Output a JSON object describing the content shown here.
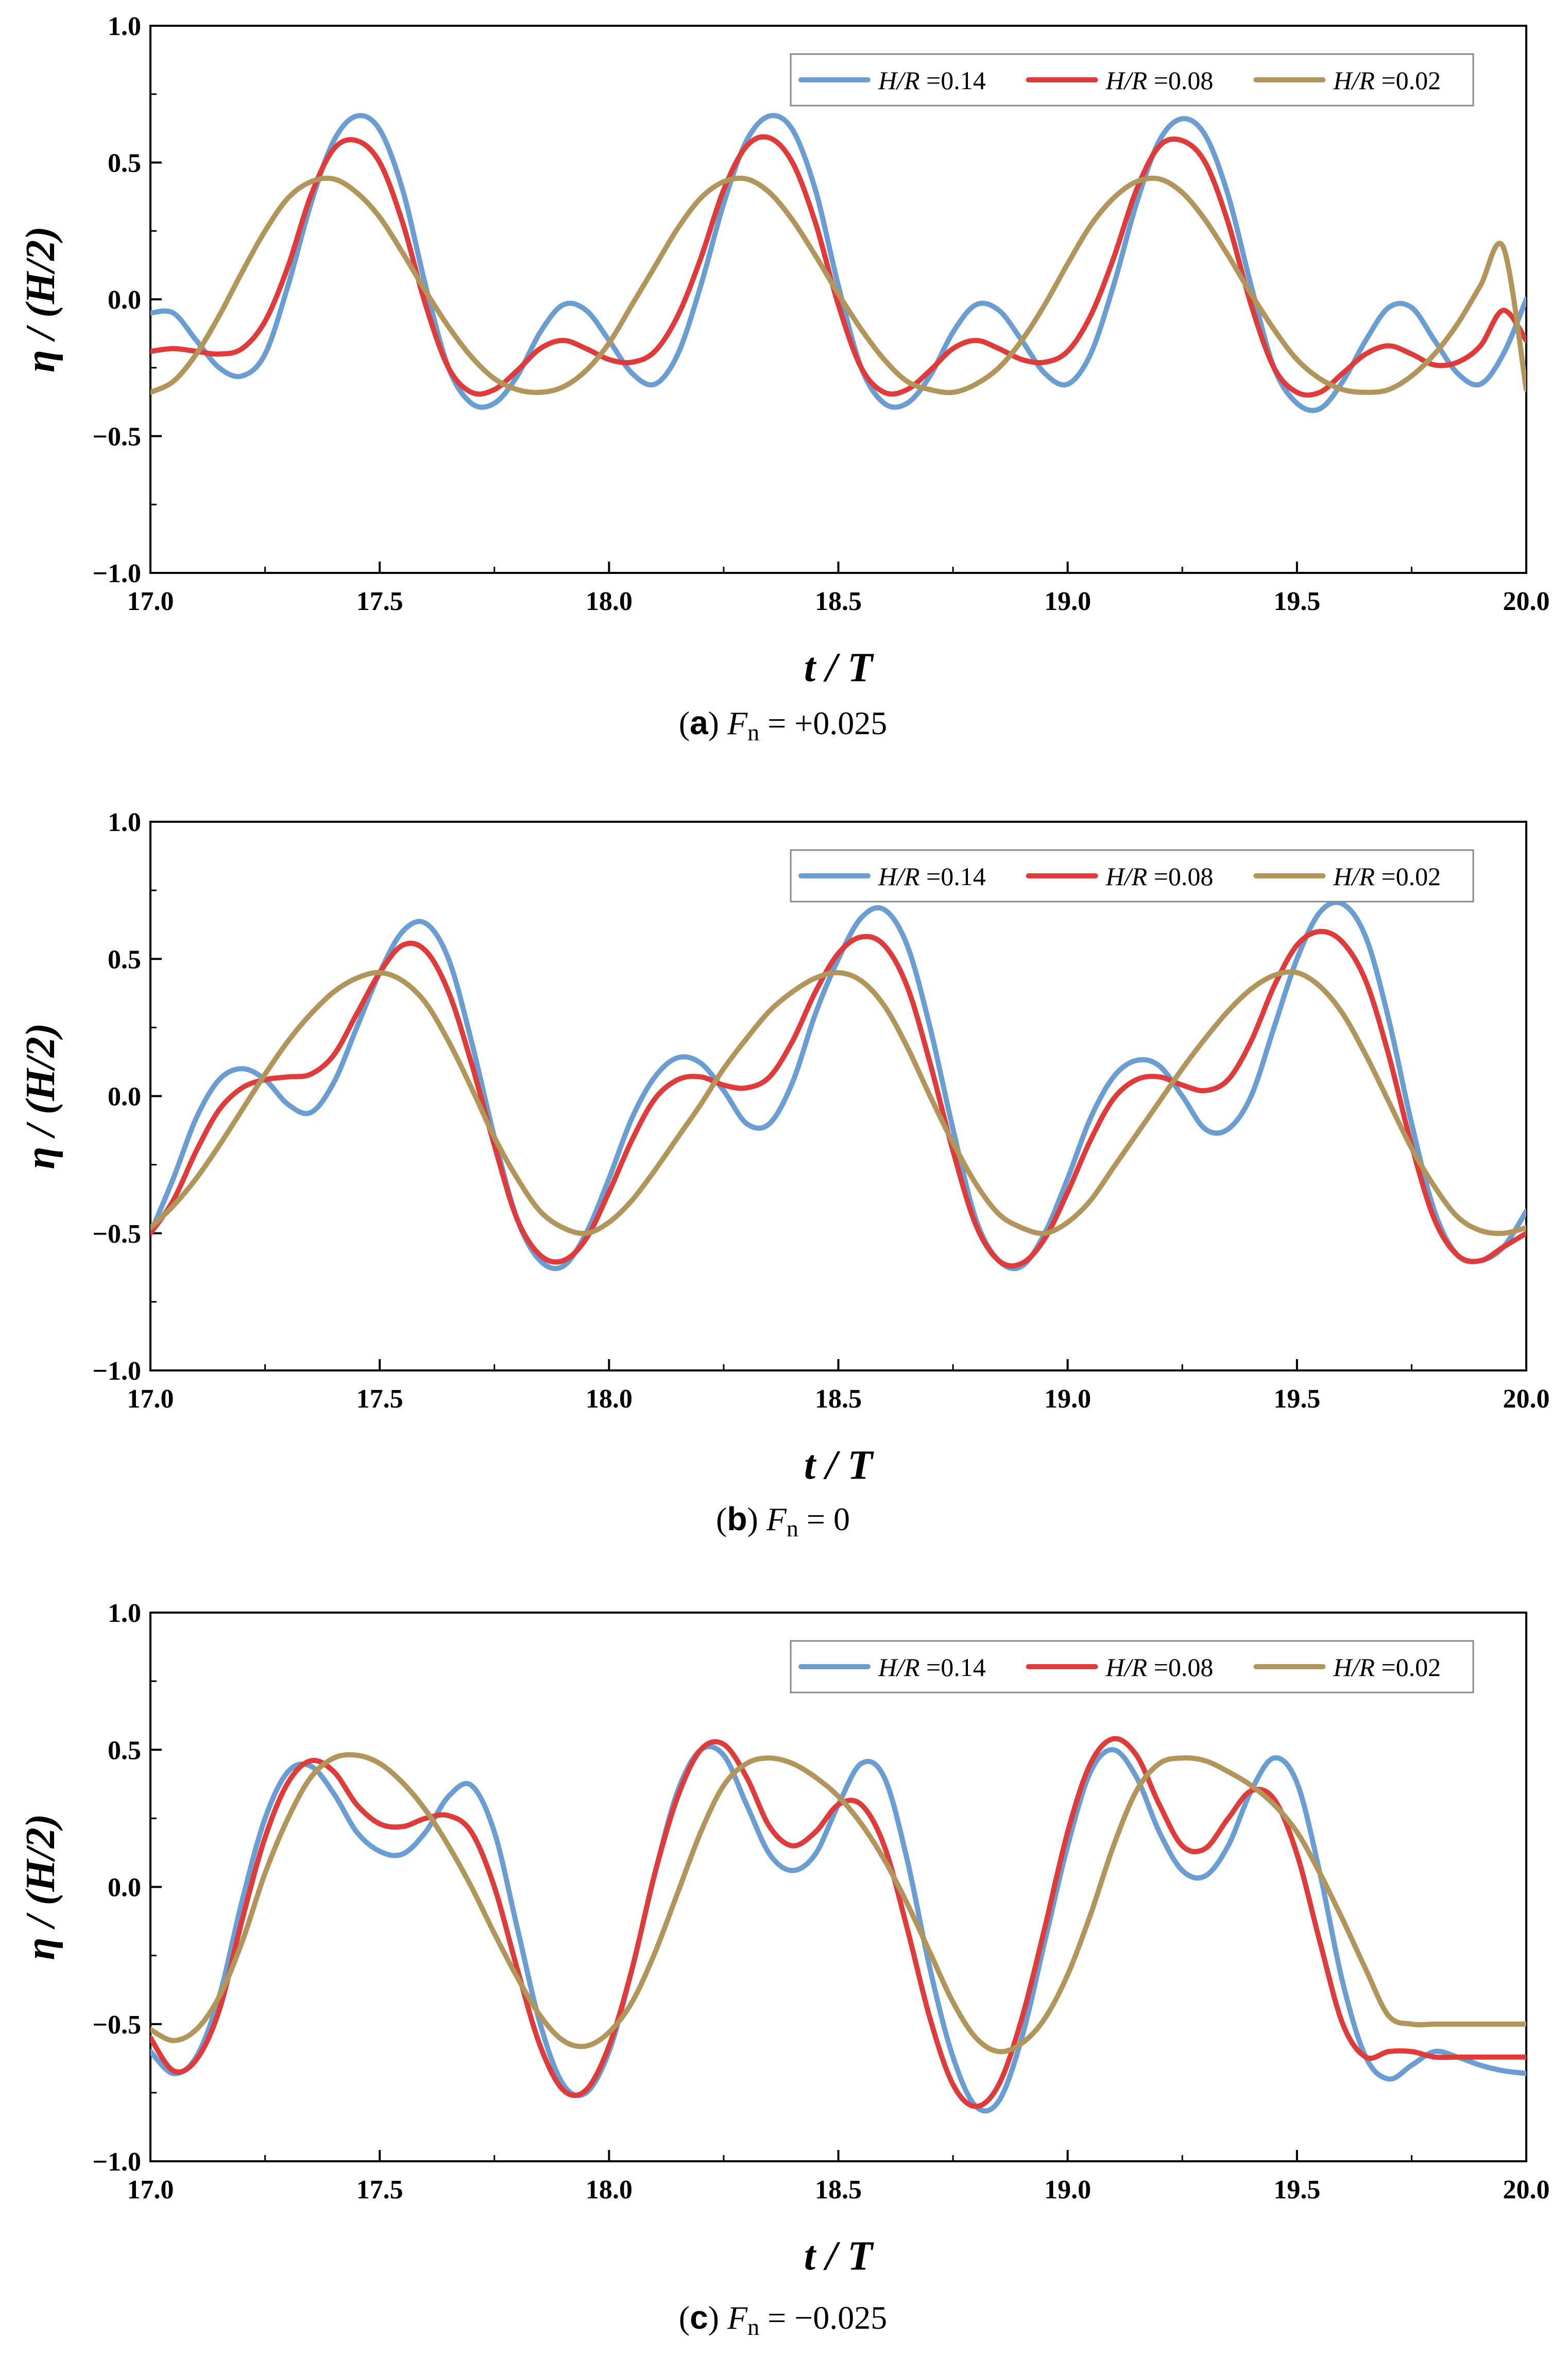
{
  "chart_data": [
    {
      "type": "line",
      "caption": {
        "letter": "a",
        "lhs": "F",
        "sub": "n",
        "rhs": " = +0.025"
      },
      "xlabel": "t / T",
      "ylabel": "η / (H/2)",
      "xlim": [
        17.0,
        20.0
      ],
      "ylim": [
        -1.0,
        1.0
      ],
      "xticks": [
        "17.0",
        "17.5",
        "18.0",
        "18.5",
        "19.0",
        "19.5",
        "20.0"
      ],
      "yticks": [
        "−1.0",
        "−0.5",
        "0.0",
        "0.5",
        "1.0"
      ],
      "legend_position": "top-right",
      "x": [
        17.0,
        17.05,
        17.1,
        17.15,
        17.2,
        17.25,
        17.3,
        17.35,
        17.4,
        17.45,
        17.5,
        17.55,
        17.6,
        17.65,
        17.7,
        17.75,
        17.8,
        17.85,
        17.9,
        17.95,
        18.0,
        18.05,
        18.1,
        18.15,
        18.2,
        18.25,
        18.3,
        18.35,
        18.4,
        18.45,
        18.5,
        18.55,
        18.6,
        18.65,
        18.7,
        18.75,
        18.8,
        18.85,
        18.9,
        18.95,
        19.0,
        19.05,
        19.1,
        19.15,
        19.2,
        19.25,
        19.3,
        19.35,
        19.4,
        19.45,
        19.5,
        19.55,
        19.6,
        19.65,
        19.7,
        19.75,
        19.8,
        19.85,
        19.9,
        19.95,
        20.0
      ],
      "series": [
        {
          "name_main": "H/R",
          "name_value": " =0.14",
          "color": "#6a9dd1",
          "values": [
            -0.05,
            -0.05,
            -0.15,
            -0.25,
            -0.28,
            -0.2,
            0.05,
            0.35,
            0.58,
            0.67,
            0.62,
            0.4,
            0.05,
            -0.25,
            -0.38,
            -0.38,
            -0.28,
            -0.12,
            -0.02,
            -0.04,
            -0.15,
            -0.27,
            -0.31,
            -0.2,
            0.05,
            0.35,
            0.58,
            0.67,
            0.62,
            0.4,
            0.05,
            -0.25,
            -0.38,
            -0.38,
            -0.28,
            -0.12,
            -0.02,
            -0.04,
            -0.15,
            -0.27,
            -0.31,
            -0.2,
            0.05,
            0.35,
            0.58,
            0.66,
            0.6,
            0.38,
            0.05,
            -0.25,
            -0.38,
            -0.4,
            -0.3,
            -0.15,
            -0.03,
            -0.03,
            -0.15,
            -0.27,
            -0.31,
            -0.2,
            0.0
          ]
        },
        {
          "name_main": "H/R",
          "name_value": " =0.08",
          "color": "#de3b3a",
          "values": [
            -0.19,
            -0.18,
            -0.19,
            -0.2,
            -0.18,
            -0.08,
            0.12,
            0.38,
            0.55,
            0.58,
            0.5,
            0.28,
            -0.02,
            -0.25,
            -0.34,
            -0.33,
            -0.26,
            -0.18,
            -0.15,
            -0.18,
            -0.22,
            -0.23,
            -0.19,
            -0.06,
            0.15,
            0.4,
            0.56,
            0.59,
            0.5,
            0.28,
            -0.02,
            -0.25,
            -0.34,
            -0.33,
            -0.26,
            -0.18,
            -0.15,
            -0.18,
            -0.22,
            -0.23,
            -0.19,
            -0.06,
            0.15,
            0.4,
            0.56,
            0.58,
            0.5,
            0.28,
            -0.02,
            -0.25,
            -0.34,
            -0.34,
            -0.27,
            -0.2,
            -0.17,
            -0.2,
            -0.24,
            -0.23,
            -0.17,
            -0.04,
            -0.15
          ]
        },
        {
          "name_main": "H/R",
          "name_value": " =0.02",
          "color": "#b1955a",
          "values": [
            -0.34,
            -0.3,
            -0.2,
            -0.06,
            0.1,
            0.25,
            0.37,
            0.43,
            0.44,
            0.39,
            0.3,
            0.17,
            0.03,
            -0.1,
            -0.21,
            -0.29,
            -0.33,
            -0.34,
            -0.32,
            -0.26,
            -0.16,
            -0.02,
            0.12,
            0.26,
            0.37,
            0.43,
            0.44,
            0.39,
            0.29,
            0.16,
            0.02,
            -0.11,
            -0.22,
            -0.3,
            -0.33,
            -0.34,
            -0.31,
            -0.25,
            -0.15,
            -0.02,
            0.13,
            0.27,
            0.37,
            0.43,
            0.44,
            0.39,
            0.29,
            0.16,
            0.02,
            -0.11,
            -0.22,
            -0.29,
            -0.33,
            -0.34,
            -0.33,
            -0.28,
            -0.2,
            -0.09,
            0.05,
            0.19,
            -0.33
          ]
        }
      ]
    },
    {
      "type": "line",
      "caption": {
        "letter": "b",
        "lhs": "F",
        "sub": "n",
        "rhs": " = 0"
      },
      "xlabel": "t / T",
      "ylabel": "η / (H/2)",
      "xlim": [
        17.0,
        20.0
      ],
      "ylim": [
        -1.0,
        1.0
      ],
      "xticks": [
        "17.0",
        "17.5",
        "18.0",
        "18.5",
        "19.0",
        "19.5",
        "20.0"
      ],
      "yticks": [
        "−1.0",
        "−0.5",
        "0.0",
        "0.5",
        "1.0"
      ],
      "legend_position": "top-right",
      "x": [
        17.0,
        17.05,
        17.1,
        17.15,
        17.2,
        17.25,
        17.3,
        17.35,
        17.4,
        17.45,
        17.5,
        17.55,
        17.6,
        17.65,
        17.7,
        17.75,
        17.8,
        17.85,
        17.9,
        17.95,
        18.0,
        18.05,
        18.1,
        18.15,
        18.2,
        18.25,
        18.3,
        18.35,
        18.4,
        18.45,
        18.5,
        18.55,
        18.6,
        18.65,
        18.7,
        18.75,
        18.8,
        18.85,
        18.9,
        18.95,
        19.0,
        19.05,
        19.1,
        19.15,
        19.2,
        19.25,
        19.3,
        19.35,
        19.4,
        19.45,
        19.5,
        19.55,
        19.6,
        19.65,
        19.7,
        19.75,
        19.8,
        19.85,
        19.9,
        19.95,
        20.0
      ],
      "series": [
        {
          "name_main": "H/R",
          "name_value": " =0.14",
          "color": "#6a9dd1",
          "values": [
            -0.5,
            -0.3,
            -0.08,
            0.06,
            0.1,
            0.06,
            -0.03,
            -0.06,
            0.05,
            0.25,
            0.45,
            0.6,
            0.63,
            0.5,
            0.2,
            -0.15,
            -0.45,
            -0.6,
            -0.62,
            -0.5,
            -0.3,
            -0.08,
            0.07,
            0.14,
            0.12,
            0.02,
            -0.1,
            -0.1,
            0.05,
            0.3,
            0.5,
            0.65,
            0.68,
            0.55,
            0.25,
            -0.12,
            -0.45,
            -0.6,
            -0.62,
            -0.5,
            -0.3,
            -0.08,
            0.07,
            0.13,
            0.11,
            0.0,
            -0.12,
            -0.12,
            0.0,
            0.25,
            0.5,
            0.67,
            0.7,
            0.58,
            0.28,
            -0.1,
            -0.42,
            -0.58,
            -0.6,
            -0.55,
            -0.42
          ]
        },
        {
          "name_main": "H/R",
          "name_value": " =0.08",
          "color": "#de3b3a",
          "values": [
            -0.5,
            -0.38,
            -0.2,
            -0.05,
            0.03,
            0.06,
            0.07,
            0.08,
            0.15,
            0.3,
            0.45,
            0.55,
            0.53,
            0.38,
            0.12,
            -0.18,
            -0.45,
            -0.58,
            -0.6,
            -0.52,
            -0.35,
            -0.16,
            -0.01,
            0.06,
            0.07,
            0.04,
            0.03,
            0.07,
            0.2,
            0.38,
            0.52,
            0.58,
            0.55,
            0.4,
            0.12,
            -0.2,
            -0.47,
            -0.6,
            -0.61,
            -0.52,
            -0.35,
            -0.16,
            -0.01,
            0.06,
            0.07,
            0.04,
            0.02,
            0.06,
            0.2,
            0.4,
            0.55,
            0.6,
            0.56,
            0.42,
            0.15,
            -0.18,
            -0.45,
            -0.58,
            -0.6,
            -0.55,
            -0.5
          ]
        },
        {
          "name_main": "H/R",
          "name_value": " =0.02",
          "color": "#b1955a",
          "values": [
            -0.48,
            -0.4,
            -0.3,
            -0.18,
            -0.05,
            0.08,
            0.2,
            0.3,
            0.38,
            0.43,
            0.45,
            0.42,
            0.34,
            0.2,
            0.03,
            -0.15,
            -0.3,
            -0.42,
            -0.48,
            -0.5,
            -0.46,
            -0.38,
            -0.27,
            -0.15,
            -0.03,
            0.1,
            0.21,
            0.31,
            0.38,
            0.43,
            0.45,
            0.42,
            0.33,
            0.18,
            0.0,
            -0.17,
            -0.32,
            -0.43,
            -0.48,
            -0.5,
            -0.46,
            -0.38,
            -0.26,
            -0.14,
            -0.02,
            0.1,
            0.21,
            0.31,
            0.39,
            0.44,
            0.45,
            0.4,
            0.3,
            0.15,
            -0.02,
            -0.19,
            -0.33,
            -0.44,
            -0.49,
            -0.5,
            -0.48
          ]
        }
      ]
    },
    {
      "type": "line",
      "caption": {
        "letter": "c",
        "lhs": "F",
        "sub": "n",
        "rhs": " = −0.025"
      },
      "xlabel": "t / T",
      "ylabel": "η / (H/2)",
      "xlim": [
        17.0,
        20.0
      ],
      "ylim": [
        -1.0,
        1.0
      ],
      "xticks": [
        "17.0",
        "17.5",
        "18.0",
        "18.5",
        "19.0",
        "19.5",
        "20.0"
      ],
      "yticks": [
        "−1.0",
        "−0.5",
        "0.0",
        "0.5",
        "1.0"
      ],
      "legend_position": "top-right",
      "x": [
        17.0,
        17.05,
        17.1,
        17.15,
        17.2,
        17.25,
        17.3,
        17.35,
        17.4,
        17.45,
        17.5,
        17.55,
        17.6,
        17.65,
        17.7,
        17.75,
        17.8,
        17.85,
        17.9,
        17.95,
        18.0,
        18.05,
        18.1,
        18.15,
        18.2,
        18.25,
        18.3,
        18.35,
        18.4,
        18.45,
        18.5,
        18.55,
        18.6,
        18.65,
        18.7,
        18.75,
        18.8,
        18.85,
        18.9,
        18.95,
        19.0,
        19.05,
        19.1,
        19.15,
        19.2,
        19.25,
        19.3,
        19.35,
        19.4,
        19.45,
        19.5,
        19.55,
        19.6,
        19.65,
        19.7,
        19.75,
        19.8,
        19.85,
        19.9,
        19.95,
        20.0
      ],
      "series": [
        {
          "name_main": "H/R",
          "name_value": " =0.14",
          "color": "#6a9dd1",
          "values": [
            -0.6,
            -0.68,
            -0.62,
            -0.4,
            -0.05,
            0.25,
            0.42,
            0.44,
            0.34,
            0.2,
            0.13,
            0.12,
            0.2,
            0.33,
            0.37,
            0.2,
            -0.15,
            -0.5,
            -0.72,
            -0.75,
            -0.6,
            -0.3,
            0.05,
            0.35,
            0.5,
            0.48,
            0.3,
            0.12,
            0.06,
            0.12,
            0.3,
            0.45,
            0.4,
            0.1,
            -0.3,
            -0.62,
            -0.8,
            -0.78,
            -0.55,
            -0.2,
            0.15,
            0.42,
            0.5,
            0.4,
            0.2,
            0.06,
            0.04,
            0.15,
            0.35,
            0.47,
            0.38,
            0.05,
            -0.35,
            -0.62,
            -0.7,
            -0.65,
            -0.6,
            -0.62,
            -0.65,
            -0.67,
            -0.68
          ]
        },
        {
          "name_main": "H/R",
          "name_value": " =0.08",
          "color": "#de3b3a",
          "values": [
            -0.55,
            -0.67,
            -0.63,
            -0.45,
            -0.12,
            0.18,
            0.38,
            0.46,
            0.42,
            0.3,
            0.23,
            0.22,
            0.25,
            0.26,
            0.2,
            0.0,
            -0.3,
            -0.58,
            -0.74,
            -0.74,
            -0.58,
            -0.3,
            0.05,
            0.33,
            0.5,
            0.52,
            0.4,
            0.22,
            0.15,
            0.2,
            0.3,
            0.3,
            0.15,
            -0.15,
            -0.48,
            -0.72,
            -0.8,
            -0.72,
            -0.48,
            -0.15,
            0.2,
            0.45,
            0.54,
            0.48,
            0.3,
            0.15,
            0.14,
            0.25,
            0.35,
            0.32,
            0.12,
            -0.2,
            -0.5,
            -0.62,
            -0.6,
            -0.6,
            -0.62,
            -0.62,
            -0.62,
            -0.62,
            -0.62
          ]
        },
        {
          "name_main": "H/R",
          "name_value": " =0.02",
          "color": "#b1955a",
          "values": [
            -0.52,
            -0.56,
            -0.52,
            -0.4,
            -0.2,
            0.05,
            0.25,
            0.4,
            0.47,
            0.48,
            0.45,
            0.38,
            0.28,
            0.15,
            0.0,
            -0.17,
            -0.33,
            -0.47,
            -0.56,
            -0.58,
            -0.53,
            -0.42,
            -0.24,
            -0.02,
            0.2,
            0.37,
            0.45,
            0.47,
            0.45,
            0.4,
            0.33,
            0.23,
            0.1,
            -0.06,
            -0.24,
            -0.42,
            -0.55,
            -0.6,
            -0.57,
            -0.48,
            -0.32,
            -0.1,
            0.15,
            0.35,
            0.45,
            0.47,
            0.46,
            0.42,
            0.37,
            0.3,
            0.2,
            0.05,
            -0.12,
            -0.3,
            -0.47,
            -0.5,
            -0.5,
            -0.5,
            -0.5,
            -0.5,
            -0.5
          ]
        }
      ]
    }
  ]
}
